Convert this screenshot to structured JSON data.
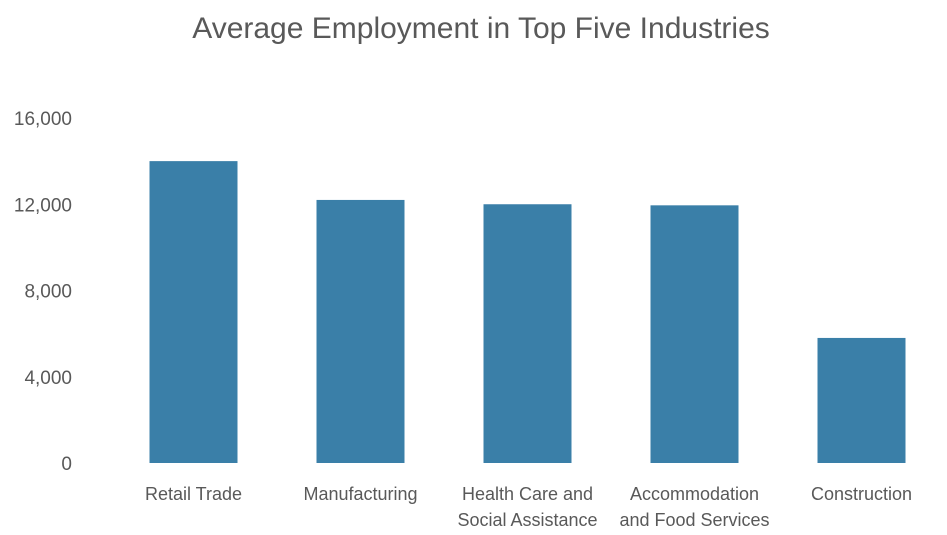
{
  "chart_data": {
    "type": "bar",
    "title": "Average Employment in Top Five Industries",
    "xlabel": "",
    "ylabel": "",
    "categories": [
      [
        "Retail Trade"
      ],
      [
        "Manufacturing"
      ],
      [
        "Health Care and",
        "Social Assistance"
      ],
      [
        "Accommodation",
        "and Food Services"
      ],
      [
        "Construction"
      ]
    ],
    "values": [
      14000,
      12200,
      12000,
      11950,
      5800
    ],
    "ylim": [
      0,
      16000
    ],
    "yticks": [
      0,
      4000,
      8000,
      12000,
      16000
    ],
    "ytick_labels": [
      "0",
      "4,000",
      "8,000",
      "12,000",
      "16,000"
    ],
    "grid": false,
    "legend": "none",
    "bar_color": "#3a7fa8"
  }
}
